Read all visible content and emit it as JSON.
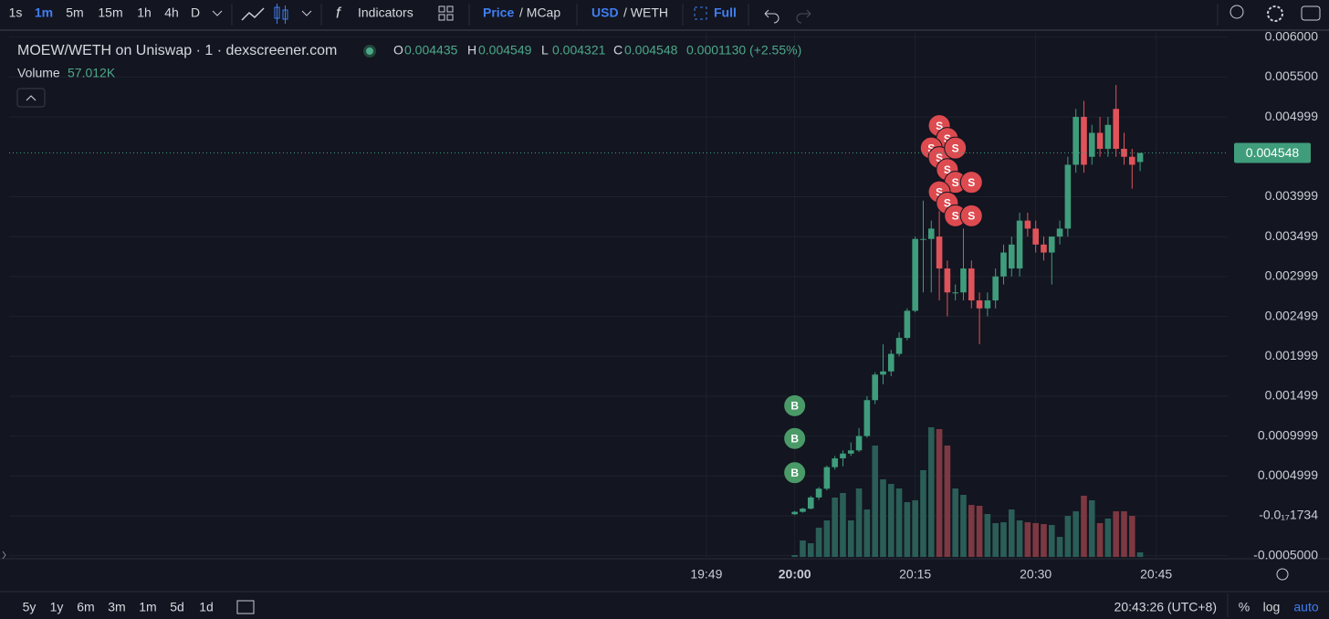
{
  "toolbar": {
    "intervals": [
      "1s",
      "1m",
      "5m",
      "15m",
      "1h",
      "4h",
      "D"
    ],
    "indicators": "Indicators",
    "price_toggle": [
      "Price",
      "/ MCap"
    ],
    "currency_toggle": [
      "USD",
      "/ WETH"
    ],
    "full": "Full"
  },
  "bottom": {
    "ranges": [
      "5y",
      "1y",
      "6m",
      "3m",
      "1m",
      "5d",
      "1d"
    ],
    "clock": "20:43:26 (UTC+8)",
    "options": [
      "%",
      "log",
      "auto"
    ]
  },
  "chart_data": {
    "type": "candlestick",
    "title": "MOEW/WETH on Uniswap · 1 · dexscreener.com",
    "ohlc_labels": [
      "O",
      "H",
      "L",
      "C"
    ],
    "change_label": "0.0001130 (+2.55%)",
    "volume_name": "Volume",
    "volume_last_label": "57.012K",
    "x": [
      1200,
      1201,
      1202,
      1203,
      1204,
      1205,
      1206,
      1207,
      1208,
      1209,
      1210,
      1211,
      1212,
      1213,
      1214,
      1215,
      1216,
      1217,
      1218,
      1219,
      1220,
      1221,
      1222,
      1223,
      1224,
      1225,
      1226,
      1227,
      1228,
      1229,
      1230,
      1231,
      1232,
      1233,
      1234,
      1235,
      1236,
      1237,
      1238,
      1239,
      1240,
      1241,
      1242,
      1243
    ],
    "open": [
      2e-05,
      5e-05,
      9e-05,
      0.00023,
      0.00034,
      0.00061,
      0.00072,
      0.00078,
      0.00082,
      0.001,
      0.00145,
      0.00177,
      0.00181,
      0.00203,
      0.00223,
      0.00257,
      0.00347,
      0.00347,
      0.0035,
      0.0031,
      0.0028,
      0.0028,
      0.0031,
      0.0027,
      0.0026,
      0.0027,
      0.003,
      0.0031,
      0.0031,
      0.0037,
      0.0036,
      0.0034,
      0.0033,
      0.0035,
      0.0036,
      0.0044,
      0.005,
      0.0045,
      0.0048,
      0.0046,
      0.0051,
      0.0046,
      0.0045,
      0.004435
    ],
    "high": [
      6e-05,
      0.0001,
      0.00025,
      0.00036,
      0.00063,
      0.00075,
      0.00082,
      0.00092,
      0.0011,
      0.0015,
      0.0018,
      0.00215,
      0.00208,
      0.0023,
      0.0026,
      0.0035,
      0.00395,
      0.0037,
      0.0039,
      0.0032,
      0.0029,
      0.0036,
      0.0032,
      0.0028,
      0.0028,
      0.0031,
      0.0034,
      0.0035,
      0.0038,
      0.0038,
      0.0037,
      0.0035,
      0.0035,
      0.0037,
      0.0045,
      0.0051,
      0.0052,
      0.0049,
      0.005,
      0.005,
      0.0054,
      0.0048,
      0.0046,
      0.004549
    ],
    "low": [
      1e-05,
      4e-05,
      8e-05,
      0.0002,
      0.00032,
      0.00058,
      0.00062,
      0.00075,
      0.0008,
      0.00098,
      0.0014,
      0.00165,
      0.00175,
      0.002,
      0.0022,
      0.00255,
      0.0028,
      0.0028,
      0.0027,
      0.0025,
      0.0027,
      0.0027,
      0.0026,
      0.00215,
      0.0025,
      0.0026,
      0.0029,
      0.003,
      0.003,
      0.0035,
      0.0033,
      0.0032,
      0.0029,
      0.0034,
      0.0035,
      0.0043,
      0.0043,
      0.0044,
      0.0045,
      0.0045,
      0.0045,
      0.0044,
      0.0041,
      0.004321
    ],
    "close": [
      5e-05,
      9e-05,
      0.00023,
      0.00034,
      0.00061,
      0.00072,
      0.00078,
      0.00082,
      0.001,
      0.00145,
      0.00177,
      0.00181,
      0.00203,
      0.00223,
      0.00257,
      0.00347,
      0.00347,
      0.0036,
      0.0031,
      0.0028,
      0.0028,
      0.0031,
      0.0027,
      0.0026,
      0.0027,
      0.003,
      0.0033,
      0.0034,
      0.0037,
      0.0036,
      0.0034,
      0.0033,
      0.0035,
      0.0036,
      0.0044,
      0.005,
      0.0044,
      0.0048,
      0.0046,
      0.0049,
      0.0046,
      0.0045,
      0.0044,
      0.004548
    ],
    "volume": [
      23000,
      206000,
      171000,
      366000,
      457000,
      743000,
      800000,
      457000,
      857000,
      594000,
      1394000,
      971000,
      914000,
      857000,
      686000,
      709000,
      1086000,
      1623000,
      1600000,
      1394000,
      857000,
      777000,
      651000,
      640000,
      537000,
      423000,
      434000,
      594000,
      457000,
      434000,
      423000,
      411000,
      400000,
      251000,
      514000,
      571000,
      766000,
      709000,
      423000,
      480000,
      571000,
      571000,
      514000,
      57012
    ],
    "trades": {
      "x": [
        1200,
        1200,
        1200,
        1218,
        1219,
        1217,
        1218,
        1220,
        1219,
        1220,
        1222,
        1218,
        1219,
        1220,
        1222
      ],
      "price": [
        0.00138,
        0.00097,
        0.00054,
        0.00489,
        0.00473,
        0.00461,
        0.00449,
        0.00461,
        0.00434,
        0.00418,
        0.00418,
        0.00406,
        0.00392,
        0.00376,
        0.00376
      ],
      "label": [
        "B",
        "B",
        "B",
        "S",
        "S",
        "S",
        "S",
        "S",
        "S",
        "S",
        "S",
        "S",
        "S",
        "S",
        "S"
      ]
    },
    "xlim": [
      1102.2,
      1253.9
    ],
    "xticks": [
      {
        "value": 1189,
        "label": "19:49"
      },
      {
        "value": 1200,
        "label": "20:00"
      },
      {
        "value": 1215,
        "label": "20:15"
      },
      {
        "value": 1230,
        "label": "20:30"
      },
      {
        "value": 1245,
        "label": "20:45"
      }
    ],
    "ylim": [
      -0.000538,
      0.006053
    ],
    "yticks": [
      {
        "value": -0.0005,
        "label": "-0.0005000"
      },
      {
        "value": -1.734e-18,
        "label": "-0.0₁₇1734"
      },
      {
        "value": 0.0004999,
        "label": "0.0004999"
      },
      {
        "value": 0.0009999,
        "label": "0.0009999"
      },
      {
        "value": 0.001499,
        "label": "0.001499"
      },
      {
        "value": 0.001999,
        "label": "0.001999"
      },
      {
        "value": 0.002499,
        "label": "0.002499"
      },
      {
        "value": 0.002999,
        "label": "0.002999"
      },
      {
        "value": 0.003499,
        "label": "0.003499"
      },
      {
        "value": 0.003999,
        "label": "0.003999"
      },
      {
        "value": 0.004999,
        "label": "0.004999"
      },
      {
        "value": 0.0055,
        "label": "0.005500"
      },
      {
        "value": 0.006,
        "label": "0.006000"
      }
    ],
    "vlim": [
      0,
      2000000
    ],
    "grid": true,
    "up_color": "#3f9d7c",
    "down_color": "#e0535a",
    "volume_up_color": "#2a5e56",
    "volume_down_color": "#7d3841",
    "buy_color": "#4a9a68",
    "sell_color": "#dd4a4f"
  }
}
